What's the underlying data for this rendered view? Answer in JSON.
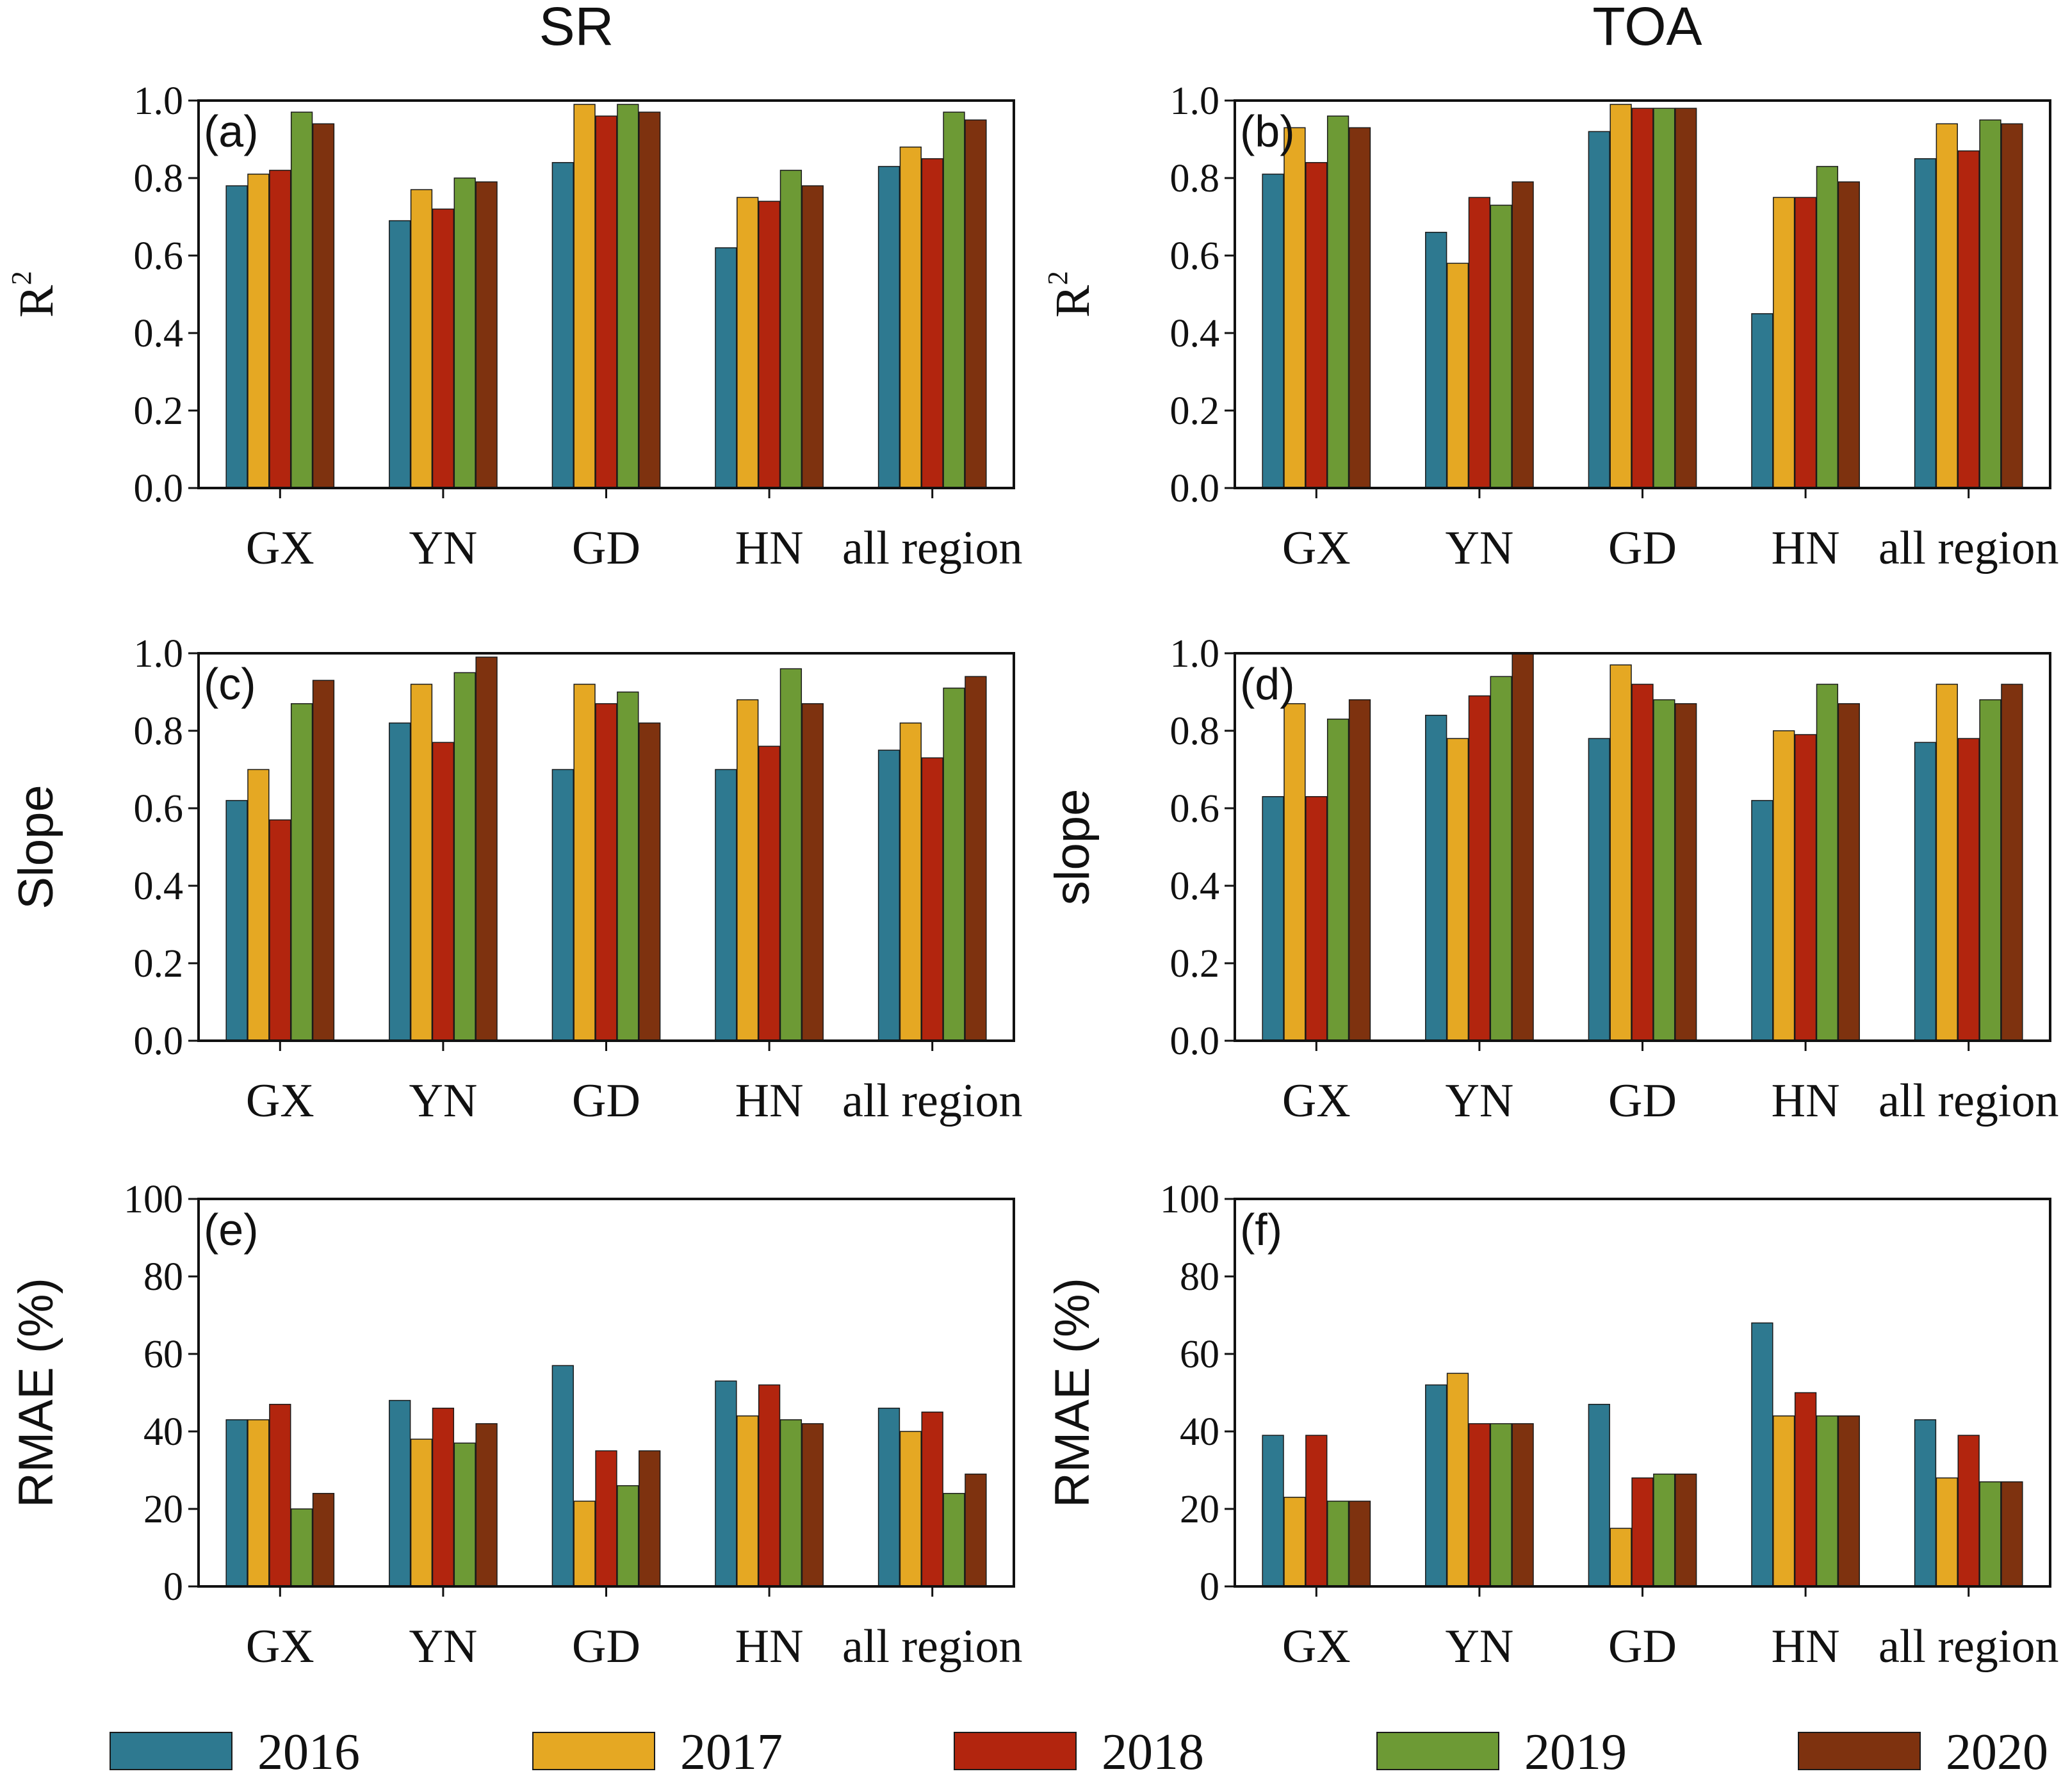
{
  "column_titles": [
    "SR",
    "TOA"
  ],
  "legend": [
    {
      "label": "2016",
      "color": "#2E7990"
    },
    {
      "label": "2017",
      "color": "#E5A823"
    },
    {
      "label": "2018",
      "color": "#B2250E"
    },
    {
      "label": "2019",
      "color": "#6D9A35"
    },
    {
      "label": "2020",
      "color": "#7E320F"
    }
  ],
  "chart_data": [
    {
      "type": "bar",
      "panel": "(a)",
      "column": "SR",
      "ylabel": "R",
      "ylabel_sup": "2",
      "ylim": [
        0,
        1
      ],
      "yticks": [
        "0.0",
        "0.2",
        "0.4",
        "0.6",
        "0.8",
        "1.0"
      ],
      "categories": [
        "GX",
        "YN",
        "GD",
        "HN",
        "all region"
      ],
      "series": [
        {
          "name": "2016",
          "values": [
            0.78,
            0.69,
            0.84,
            0.62,
            0.83
          ]
        },
        {
          "name": "2017",
          "values": [
            0.81,
            0.77,
            0.99,
            0.75,
            0.88
          ]
        },
        {
          "name": "2018",
          "values": [
            0.82,
            0.72,
            0.96,
            0.74,
            0.85
          ]
        },
        {
          "name": "2019",
          "values": [
            0.97,
            0.8,
            0.99,
            0.82,
            0.97
          ]
        },
        {
          "name": "2020",
          "values": [
            0.94,
            0.79,
            0.97,
            0.78,
            0.95
          ]
        }
      ]
    },
    {
      "type": "bar",
      "panel": "(b)",
      "column": "TOA",
      "ylabel": "R",
      "ylabel_sup": "2",
      "ylim": [
        0,
        1
      ],
      "yticks": [
        "0.0",
        "0.2",
        "0.4",
        "0.6",
        "0.8",
        "1.0"
      ],
      "categories": [
        "GX",
        "YN",
        "GD",
        "HN",
        "all region"
      ],
      "series": [
        {
          "name": "2016",
          "values": [
            0.81,
            0.66,
            0.92,
            0.45,
            0.85
          ]
        },
        {
          "name": "2017",
          "values": [
            0.93,
            0.58,
            0.99,
            0.75,
            0.94
          ]
        },
        {
          "name": "2018",
          "values": [
            0.84,
            0.75,
            0.98,
            0.75,
            0.87
          ]
        },
        {
          "name": "2019",
          "values": [
            0.96,
            0.73,
            0.98,
            0.83,
            0.95
          ]
        },
        {
          "name": "2020",
          "values": [
            0.93,
            0.79,
            0.98,
            0.79,
            0.94
          ]
        }
      ]
    },
    {
      "type": "bar",
      "panel": "(c)",
      "column": "SR",
      "ylabel": "Slope",
      "ylabel_sup": "",
      "ylim": [
        0,
        1
      ],
      "yticks": [
        "0.0",
        "0.2",
        "0.4",
        "0.6",
        "0.8",
        "1.0"
      ],
      "categories": [
        "GX",
        "YN",
        "GD",
        "HN",
        "all region"
      ],
      "series": [
        {
          "name": "2016",
          "values": [
            0.62,
            0.82,
            0.7,
            0.7,
            0.75
          ]
        },
        {
          "name": "2017",
          "values": [
            0.7,
            0.92,
            0.92,
            0.88,
            0.82
          ]
        },
        {
          "name": "2018",
          "values": [
            0.57,
            0.77,
            0.87,
            0.76,
            0.73
          ]
        },
        {
          "name": "2019",
          "values": [
            0.87,
            0.95,
            0.9,
            0.96,
            0.91
          ]
        },
        {
          "name": "2020",
          "values": [
            0.93,
            0.99,
            0.82,
            0.87,
            0.94
          ]
        }
      ]
    },
    {
      "type": "bar",
      "panel": "(d)",
      "column": "TOA",
      "ylabel": "slope",
      "ylabel_sup": "",
      "ylim": [
        0,
        1
      ],
      "yticks": [
        "0.0",
        "0.2",
        "0.4",
        "0.6",
        "0.8",
        "1.0"
      ],
      "categories": [
        "GX",
        "YN",
        "GD",
        "HN",
        "all region"
      ],
      "series": [
        {
          "name": "2016",
          "values": [
            0.63,
            0.84,
            0.78,
            0.62,
            0.77
          ]
        },
        {
          "name": "2017",
          "values": [
            0.87,
            0.78,
            0.97,
            0.8,
            0.92
          ]
        },
        {
          "name": "2018",
          "values": [
            0.63,
            0.89,
            0.92,
            0.79,
            0.78
          ]
        },
        {
          "name": "2019",
          "values": [
            0.83,
            0.94,
            0.88,
            0.92,
            0.88
          ]
        },
        {
          "name": "2020",
          "values": [
            0.88,
            1.0,
            0.87,
            0.87,
            0.92
          ]
        }
      ]
    },
    {
      "type": "bar",
      "panel": "(e)",
      "column": "SR",
      "ylabel": "RMAE (%)",
      "ylabel_sup": "",
      "ylim": [
        0,
        100
      ],
      "yticks": [
        "0",
        "20",
        "40",
        "60",
        "80",
        "100"
      ],
      "categories": [
        "GX",
        "YN",
        "GD",
        "HN",
        "all region"
      ],
      "series": [
        {
          "name": "2016",
          "values": [
            43,
            48,
            57,
            53,
            46
          ]
        },
        {
          "name": "2017",
          "values": [
            43,
            38,
            22,
            44,
            40
          ]
        },
        {
          "name": "2018",
          "values": [
            47,
            46,
            35,
            52,
            45
          ]
        },
        {
          "name": "2019",
          "values": [
            20,
            37,
            26,
            43,
            24
          ]
        },
        {
          "name": "2020",
          "values": [
            24,
            42,
            35,
            42,
            29
          ]
        }
      ]
    },
    {
      "type": "bar",
      "panel": "(f)",
      "column": "TOA",
      "ylabel": "RMAE (%)",
      "ylabel_sup": "",
      "ylim": [
        0,
        100
      ],
      "yticks": [
        "0",
        "20",
        "40",
        "60",
        "80",
        "100"
      ],
      "categories": [
        "GX",
        "YN",
        "GD",
        "HN",
        "all region"
      ],
      "series": [
        {
          "name": "2016",
          "values": [
            39,
            52,
            47,
            68,
            43
          ]
        },
        {
          "name": "2017",
          "values": [
            23,
            55,
            15,
            44,
            28
          ]
        },
        {
          "name": "2018",
          "values": [
            39,
            42,
            28,
            50,
            39
          ]
        },
        {
          "name": "2019",
          "values": [
            22,
            42,
            29,
            44,
            27
          ]
        },
        {
          "name": "2020",
          "values": [
            22,
            42,
            29,
            44,
            27
          ]
        }
      ]
    }
  ]
}
